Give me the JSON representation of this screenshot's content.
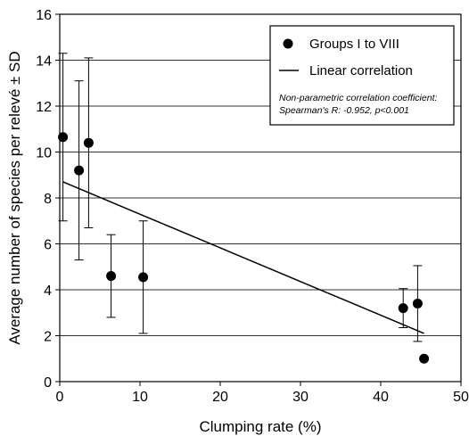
{
  "chart_data": {
    "type": "scatter",
    "xlabel": "Clumping rate (%)",
    "ylabel": "Average number of species per relevé ± SD",
    "xlim": [
      0,
      50
    ],
    "ylim": [
      0,
      16
    ],
    "x_ticks": [
      "0",
      "10",
      "20",
      "30",
      "40",
      "50"
    ],
    "y_ticks": [
      "0",
      "2",
      "4",
      "6",
      "8",
      "10",
      "12",
      "14",
      "16"
    ],
    "grid": "horizontal",
    "series": [
      {
        "name": "Groups I to VIII",
        "points": [
          {
            "x": 0.4,
            "y": 10.65,
            "sd": 3.65
          },
          {
            "x": 2.4,
            "y": 9.2,
            "sd": 3.9
          },
          {
            "x": 3.6,
            "y": 10.4,
            "sd": 3.7
          },
          {
            "x": 6.4,
            "y": 4.6,
            "sd": 1.8
          },
          {
            "x": 10.4,
            "y": 4.55,
            "sd": 2.45
          },
          {
            "x": 42.8,
            "y": 3.2,
            "sd": 0.85
          },
          {
            "x": 44.6,
            "y": 3.4,
            "sd": 1.65
          },
          {
            "x": 45.4,
            "y": 1.0,
            "sd": null
          }
        ]
      },
      {
        "name": "Linear correlation",
        "line": [
          {
            "x": 0.4,
            "y": 8.7
          },
          {
            "x": 45.4,
            "y": 2.1
          }
        ]
      }
    ],
    "legend": {
      "position": "top-right",
      "entries": [
        "Groups I to VIII",
        "Linear correlation"
      ],
      "note_line1": "Non-parametric correlation coefficient:",
      "note_line2": "Spearman's R: -0.952, p<0.001"
    }
  }
}
